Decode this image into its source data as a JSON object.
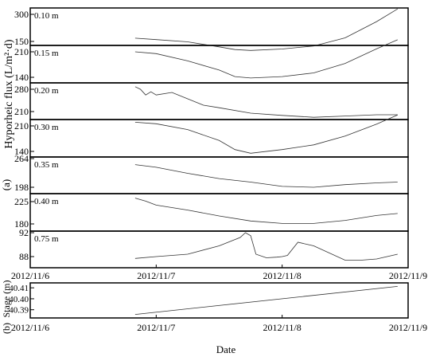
{
  "figure": {
    "panel_a_label": "(a)",
    "panel_a_ylabel": "Hyporheic flux (L/m²·d)",
    "panel_b_label": "(b)",
    "panel_b_ylabel": "Stage (m)",
    "xlabel": "Date"
  },
  "chart_data": [
    {
      "type": "line",
      "depth": "0.10 m",
      "yticks": [
        300,
        150
      ],
      "ylim": [
        70,
        370
      ],
      "x": [
        "2012/11/6 20:00",
        "2012/11/7 00:00",
        "2012/11/7 06:00",
        "2012/11/7 12:00",
        "2012/11/7 15:00",
        "2012/11/7 18:00",
        "2012/11/8 00:00",
        "2012/11/8 06:00",
        "2012/11/8 12:00",
        "2012/11/8 18:00",
        "2012/11/8 22:00"
      ],
      "y": [
        168,
        160,
        148,
        120,
        105,
        100,
        108,
        125,
        170,
        260,
        330
      ]
    },
    {
      "type": "line",
      "depth": "0.15 m",
      "yticks": [
        210,
        140
      ],
      "ylim": [
        125,
        270
      ],
      "x": [
        "2012/11/6 20:00",
        "2012/11/7 00:00",
        "2012/11/7 06:00",
        "2012/11/7 12:00",
        "2012/11/7 15:00",
        "2012/11/7 18:00",
        "2012/11/8 00:00",
        "2012/11/8 06:00",
        "2012/11/8 12:00",
        "2012/11/8 18:00",
        "2012/11/8 22:00"
      ],
      "y": [
        210,
        205,
        185,
        160,
        142,
        138,
        142,
        152,
        178,
        218,
        243
      ]
    },
    {
      "type": "line",
      "depth": "0.20 m",
      "yticks": [
        280,
        210
      ],
      "ylim": [
        176,
        300
      ],
      "x": [
        "2012/11/6 20:00",
        "2012/11/6 21:00",
        "2012/11/6 22:00",
        "2012/11/6 23:00",
        "2012/11/7 00:00",
        "2012/11/7 03:00",
        "2012/11/7 06:00",
        "2012/11/7 09:00",
        "2012/11/7 12:00",
        "2012/11/7 18:00",
        "2012/11/8 00:00",
        "2012/11/8 06:00",
        "2012/11/8 12:00",
        "2012/11/8 18:00",
        "2012/11/8 22:00"
      ],
      "y": [
        288,
        280,
        262,
        272,
        262,
        270,
        250,
        230,
        222,
        205,
        198,
        192,
        196,
        200,
        200
      ]
    },
    {
      "type": "line",
      "depth": "0.30 m",
      "yticks": [
        210,
        140
      ],
      "ylim": [
        124,
        270
      ],
      "x": [
        "2012/11/6 20:00",
        "2012/11/7 00:00",
        "2012/11/7 06:00",
        "2012/11/7 12:00",
        "2012/11/7 15:00",
        "2012/11/7 18:00",
        "2012/11/8 00:00",
        "2012/11/8 06:00",
        "2012/11/8 12:00",
        "2012/11/8 18:00",
        "2012/11/8 22:00"
      ],
      "y": [
        220,
        216,
        200,
        170,
        145,
        135,
        145,
        158,
        182,
        215,
        240
      ]
    },
    {
      "type": "line",
      "depth": "0.35 m",
      "yticks": [
        264,
        198
      ],
      "ylim": [
        176,
        264
      ],
      "x": [
        "2012/11/6 20:00",
        "2012/11/7 00:00",
        "2012/11/7 06:00",
        "2012/11/7 12:00",
        "2012/11/7 18:00",
        "2012/11/8 00:00",
        "2012/11/8 06:00",
        "2012/11/8 12:00",
        "2012/11/8 18:00",
        "2012/11/8 22:00"
      ],
      "y": [
        250,
        244,
        230,
        218,
        210,
        200,
        198,
        204,
        208,
        210
      ]
    },
    {
      "type": "line",
      "depth": "0.40 m",
      "yticks": [
        225,
        180
      ],
      "ylim": [
        168,
        243
      ],
      "x": [
        "2012/11/6 20:00",
        "2012/11/6 22:00",
        "2012/11/7 00:00",
        "2012/11/7 06:00",
        "2012/11/7 12:00",
        "2012/11/7 18:00",
        "2012/11/8 00:00",
        "2012/11/8 06:00",
        "2012/11/8 12:00",
        "2012/11/8 18:00",
        "2012/11/8 22:00"
      ],
      "y": [
        232,
        226,
        218,
        208,
        196,
        186,
        181,
        181,
        187,
        197,
        201
      ]
    },
    {
      "type": "line",
      "depth": "0.75 m",
      "yticks": [
        92,
        88
      ],
      "ylim": [
        86.2,
        92.2
      ],
      "x": [
        "2012/11/6 20:00",
        "2012/11/7 00:00",
        "2012/11/7 06:00",
        "2012/11/7 12:00",
        "2012/11/7 16:00",
        "2012/11/7 17:00",
        "2012/11/7 18:00",
        "2012/11/7 19:00",
        "2012/11/7 21:00",
        "2012/11/7 23:00",
        "2012/11/8 00:00",
        "2012/11/8 01:00",
        "2012/11/8 03:00",
        "2012/11/8 06:00",
        "2012/11/8 12:00",
        "2012/11/8 15:00",
        "2012/11/8 18:00",
        "2012/11/8 22:00"
      ],
      "y": [
        87.7,
        88.0,
        88.4,
        89.8,
        91.2,
        92.0,
        91.5,
        88.4,
        87.8,
        87.9,
        88.0,
        88.2,
        90.4,
        89.8,
        87.4,
        87.4,
        87.6,
        88.4
      ]
    },
    {
      "type": "line",
      "panel": "b",
      "yticks": [
        40.41,
        40.4,
        40.39
      ],
      "ylim": [
        40.3825,
        40.4145
      ],
      "x": [
        "2012/11/6 20:00",
        "2012/11/8 22:00"
      ],
      "y": [
        40.3857,
        40.4113
      ]
    }
  ],
  "xaxis": {
    "ticks": [
      "2012/11/6",
      "2012/11/7",
      "2012/11/8",
      "2012/11/9"
    ]
  }
}
